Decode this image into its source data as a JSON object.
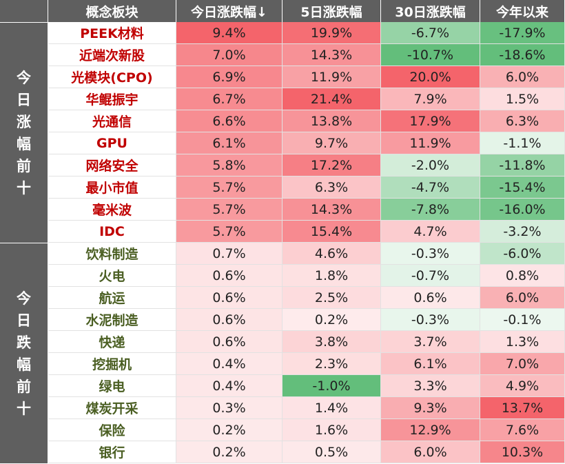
{
  "chart_data": {
    "type": "table",
    "columns": [
      "概念板块",
      "今日涨跌幅↓",
      "5日涨跌幅",
      "30日涨跌幅",
      "今年以来"
    ],
    "groups": [
      {
        "label": "今日涨幅前十",
        "name_color": "#c00000",
        "start_row": 0,
        "count": 10
      },
      {
        "label": "今日跌幅前十",
        "name_color": "#4a5e22",
        "start_row": 10,
        "count": 10
      }
    ],
    "rows": [
      {
        "name": "PEEK材料",
        "today": "9.4%",
        "d5": "19.9%",
        "d30": "-6.7%",
        "ytd": "-17.9%"
      },
      {
        "name": "近端次新股",
        "today": "7.0%",
        "d5": "14.3%",
        "d30": "-10.7%",
        "ytd": "-18.6%"
      },
      {
        "name": "光模块(CPO)",
        "today": "6.9%",
        "d5": "11.9%",
        "d30": "20.0%",
        "ytd": "6.0%"
      },
      {
        "name": "华鲲振宇",
        "today": "6.7%",
        "d5": "21.4%",
        "d30": "7.9%",
        "ytd": "1.5%"
      },
      {
        "name": "光通信",
        "today": "6.6%",
        "d5": "13.8%",
        "d30": "17.9%",
        "ytd": "6.3%"
      },
      {
        "name": "GPU",
        "today": "6.1%",
        "d5": "9.7%",
        "d30": "11.9%",
        "ytd": "-1.1%"
      },
      {
        "name": "网络安全",
        "today": "5.8%",
        "d5": "17.2%",
        "d30": "-2.0%",
        "ytd": "-11.8%"
      },
      {
        "name": "最小市值",
        "today": "5.7%",
        "d5": "6.3%",
        "d30": "-4.7%",
        "ytd": "-15.4%"
      },
      {
        "name": "毫米波",
        "today": "5.7%",
        "d5": "14.3%",
        "d30": "-7.8%",
        "ytd": "-16.0%"
      },
      {
        "name": "IDC",
        "today": "5.7%",
        "d5": "15.4%",
        "d30": "4.7%",
        "ytd": "-3.2%"
      },
      {
        "name": "饮料制造",
        "today": "0.7%",
        "d5": "4.6%",
        "d30": "-0.3%",
        "ytd": "-6.0%"
      },
      {
        "name": "火电",
        "today": "0.6%",
        "d5": "1.8%",
        "d30": "-0.7%",
        "ytd": "0.8%"
      },
      {
        "name": "航运",
        "today": "0.6%",
        "d5": "2.5%",
        "d30": "0.6%",
        "ytd": "6.0%"
      },
      {
        "name": "水泥制造",
        "today": "0.6%",
        "d5": "0.2%",
        "d30": "-0.3%",
        "ytd": "-0.1%"
      },
      {
        "name": "快递",
        "today": "0.6%",
        "d5": "3.8%",
        "d30": "3.7%",
        "ytd": "1.3%"
      },
      {
        "name": "挖掘机",
        "today": "0.4%",
        "d5": "2.3%",
        "d30": "6.1%",
        "ytd": "7.0%"
      },
      {
        "name": "绿电",
        "today": "0.4%",
        "d5": "-1.0%",
        "d30": "3.3%",
        "ytd": "4.9%"
      },
      {
        "name": "煤炭开采",
        "today": "0.3%",
        "d5": "1.4%",
        "d30": "9.3%",
        "ytd": "13.7%"
      },
      {
        "name": "保险",
        "today": "0.2%",
        "d5": "1.6%",
        "d30": "12.9%",
        "ytd": "7.6%"
      },
      {
        "name": "银行",
        "today": "0.2%",
        "d5": "0.5%",
        "d30": "6.0%",
        "ytd": "10.3%"
      }
    ],
    "colors": {
      "header_bg": "#5f5f5f",
      "header_text": "#ffffff",
      "positive_max": "#f4646b",
      "negative_max": "#63be7b",
      "neutral": "#ffffff"
    },
    "color_scale": "per-column diverging: red for gains, green for losses, intensity by magnitude"
  }
}
